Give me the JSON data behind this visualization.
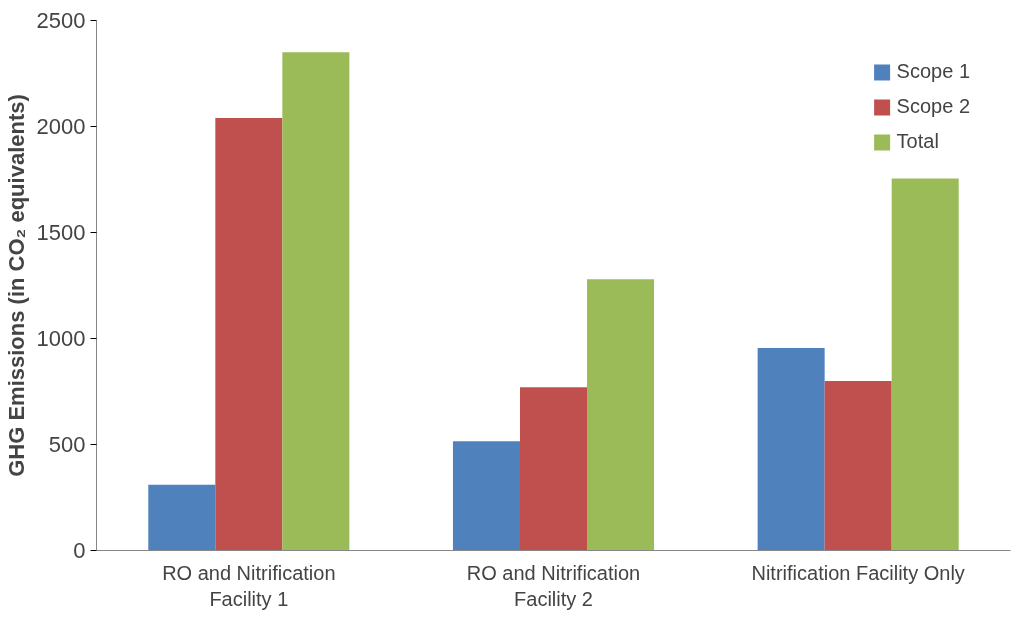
{
  "chart_data": {
    "type": "bar",
    "ylabel": "GHG Emissions (in CO₂ equivalents)",
    "categories": [
      "RO and Nitrification\nFacility 1",
      "RO and Nitrification\nFacility 2",
      "Nitrification Facility Only"
    ],
    "series": [
      {
        "name": "Scope 1",
        "color": "#4f81bd",
        "values": [
          310,
          515,
          955
        ]
      },
      {
        "name": "Scope 2",
        "color": "#c0504d",
        "values": [
          2040,
          770,
          800
        ]
      },
      {
        "name": "Total",
        "color": "#9bbb59",
        "values": [
          2350,
          1280,
          1755
        ]
      }
    ],
    "ylim": [
      0,
      2500
    ],
    "yticks": [
      0,
      500,
      1000,
      1500,
      2000,
      2500
    ],
    "grid": false,
    "legend": "top right"
  }
}
